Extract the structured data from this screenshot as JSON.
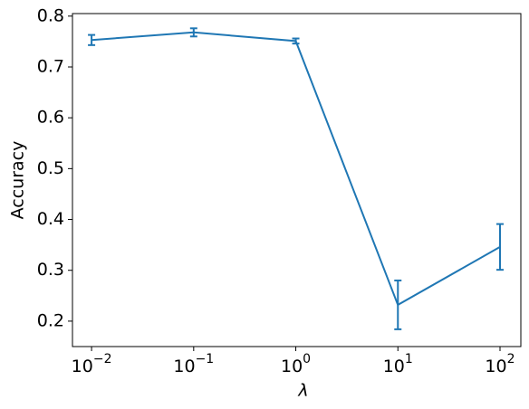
{
  "chart_data": {
    "type": "line",
    "xlabel": "λ",
    "ylabel": "Accuracy",
    "x": [
      0.01,
      0.1,
      1,
      10,
      100
    ],
    "series": [
      {
        "color": "#1f77b4",
        "values": [
          0.753,
          0.768,
          0.751,
          0.232,
          0.346
        ],
        "errors": [
          0.01,
          0.008,
          0.005,
          0.048,
          0.045
        ]
      }
    ],
    "xscale": "log",
    "xlim": [
      0.0065,
      160
    ],
    "ylim": [
      0.15,
      0.805
    ],
    "xticks": [
      {
        "value": 0.01,
        "label": "10−2"
      },
      {
        "value": 0.1,
        "label": "10−1"
      },
      {
        "value": 1,
        "label": "100"
      },
      {
        "value": 10,
        "label": "101"
      },
      {
        "value": 100,
        "label": "102"
      }
    ],
    "yticks": [
      0.2,
      0.3,
      0.4,
      0.5,
      0.6,
      0.7,
      0.8
    ]
  }
}
